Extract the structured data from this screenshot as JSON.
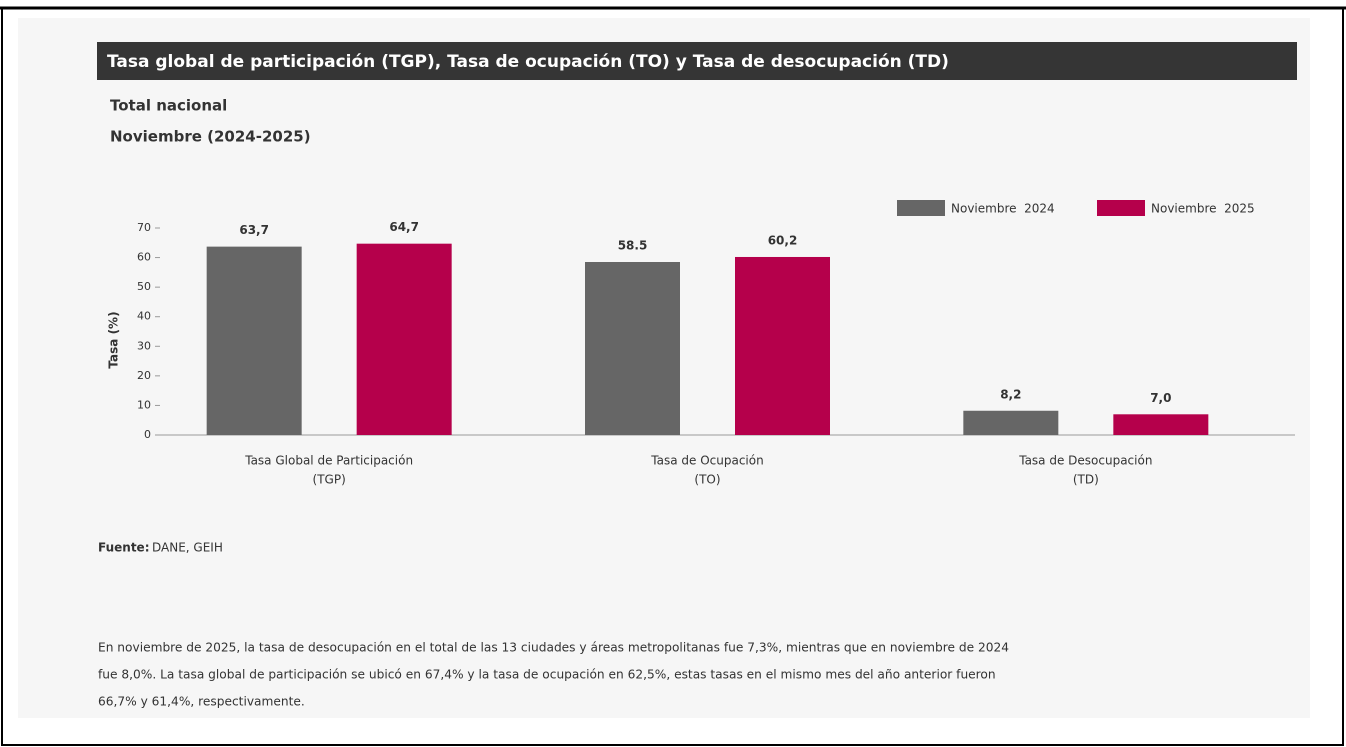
{
  "chart_data": {
    "type": "bar",
    "title": "Tasa global de participación (TGP), Tasa de ocupación (TO) y Tasa de desocupación (TD)",
    "subtitle": [
      "Total nacional",
      "Noviembre (2024-2025)"
    ],
    "y_label": "Tasa (%)",
    "categories": [
      [
        "Tasa Global de Participación",
        "(TGP)"
      ],
      [
        "Tasa de Ocupación",
        "(TO)"
      ],
      [
        "Tasa de Desocupación",
        "(TD)"
      ]
    ],
    "series": [
      {
        "name": "Noviembre  2024",
        "color": "#666666",
        "values": [
          63.7,
          58.5,
          8.2
        ],
        "value_labels": [
          "63,7",
          "58.5",
          "8,2"
        ]
      },
      {
        "name": "Noviembre  2025",
        "color": "#b5004b",
        "values": [
          64.7,
          60.2,
          7.0
        ],
        "value_labels": [
          "64,7",
          "60,2",
          "7,0"
        ]
      }
    ],
    "ylim": [
      0,
      70
    ],
    "yticks": [
      0,
      10,
      20,
      30,
      40,
      50,
      60,
      70
    ],
    "legend": "top-right",
    "source_label": "Fuente:",
    "source": "DANE, GEIH",
    "note": [
      "En noviembre de 2025, la tasa de desocupación en el total de las 13 ciudades y áreas metropolitanas fue 7,3%, mientras que en noviembre de 2024",
      "fue 8,0%. La tasa global de participación se ubicó en 67,4% y la tasa de ocupación en 62,5%, estas tasas en el mismo mes del año anterior fueron",
      "66,7% y 61,4%, respectivamente."
    ]
  }
}
